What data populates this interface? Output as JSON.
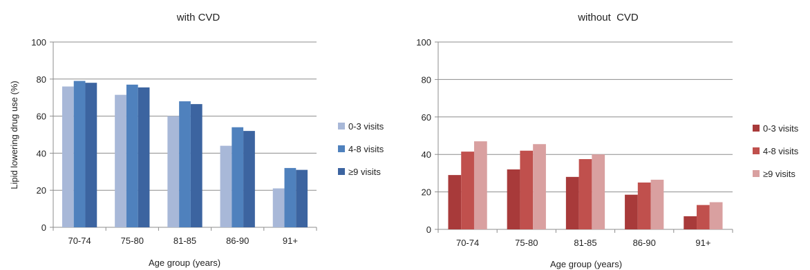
{
  "chart_data": [
    {
      "type": "bar",
      "title": "with CVD",
      "xlabel": "Age group (years)",
      "ylabel": "Lipid lowering drug use (%)",
      "ylim": [
        0,
        100
      ],
      "yticks": [
        0,
        20,
        40,
        60,
        80,
        100
      ],
      "grid": true,
      "legend": "right",
      "categories": [
        "70-74",
        "75-80",
        "81-85",
        "86-90",
        "91+"
      ],
      "series": [
        {
          "name": "0-3 visits",
          "color": "#a8b8d8",
          "values": [
            76,
            71.5,
            60,
            44,
            21
          ]
        },
        {
          "name": "4-8 visits",
          "color": "#4f81bd",
          "values": [
            79,
            77,
            68,
            54,
            32
          ]
        },
        {
          "name": "≥9 visits",
          "color": "#3c64a0",
          "values": [
            78,
            75.5,
            66.5,
            52,
            31
          ]
        }
      ]
    },
    {
      "type": "bar",
      "title": "without  CVD",
      "xlabel": "Age group (years)",
      "ylabel": "",
      "ylim": [
        0,
        100
      ],
      "yticks": [
        0,
        20,
        40,
        60,
        80,
        100
      ],
      "grid": true,
      "legend": "right",
      "categories": [
        "70-74",
        "75-80",
        "81-85",
        "86-90",
        "91+"
      ],
      "series": [
        {
          "name": "0-3 visits",
          "color": "#a83a3a",
          "values": [
            29,
            32,
            28,
            18.5,
            7
          ]
        },
        {
          "name": "4-8 visits",
          "color": "#c0504d",
          "values": [
            41.5,
            42,
            37.5,
            25,
            13
          ]
        },
        {
          "name": "≥9 visits",
          "color": "#d9a0a0",
          "values": [
            47,
            45.5,
            40,
            26.5,
            14.5
          ]
        }
      ]
    }
  ]
}
